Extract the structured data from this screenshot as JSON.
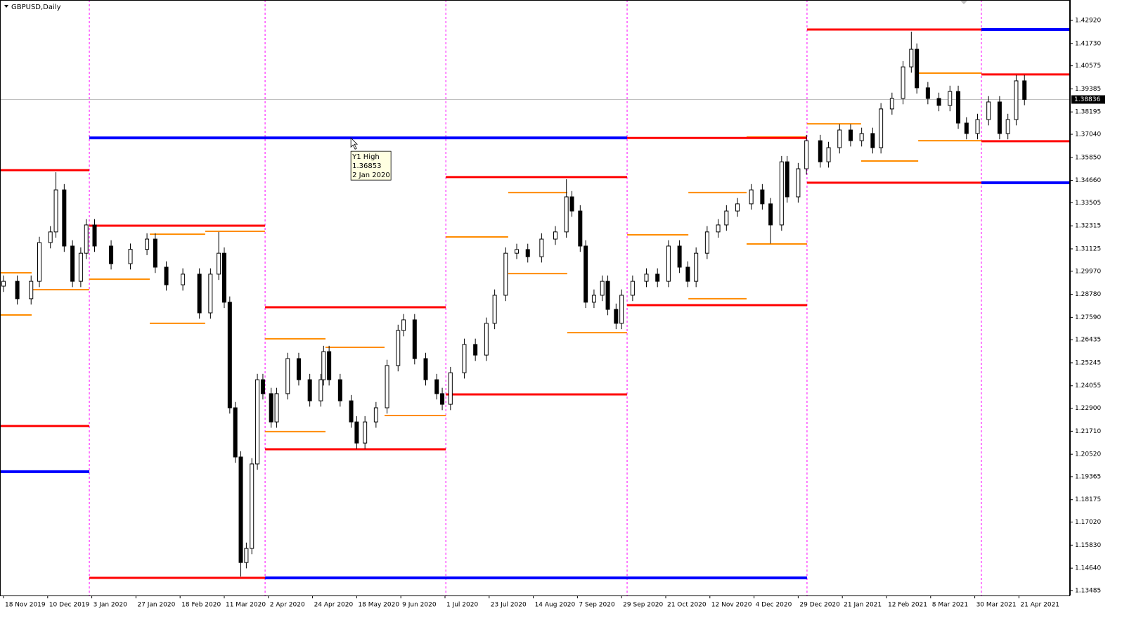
{
  "chart_data": {
    "type": "candlestick",
    "title": "GBPUSD,Daily",
    "x": [
      0,
      5,
      10,
      13,
      17,
      19,
      22,
      25,
      28,
      30,
      33,
      39,
      46,
      52,
      55,
      59,
      65,
      71,
      75,
      78,
      80,
      82,
      84,
      86,
      88,
      90,
      92,
      94,
      97,
      99,
      103,
      107,
      111,
      115,
      116,
      118,
      122,
      126,
      128,
      131,
      135,
      139,
      143,
      145,
      149,
      153,
      157,
      159,
      162,
      167,
      171,
      175,
      178,
      182,
      186,
      190,
      195,
      200,
      204,
      206,
      209,
      211,
      214,
      217,
      219,
      222,
      224,
      228,
      233,
      237,
      241,
      245,
      248,
      251,
      255,
      259,
      262,
      266,
      271,
      275,
      278,
      282,
      284,
      288,
      291,
      296,
      299,
      303,
      307,
      311,
      315,
      318,
      322,
      326,
      329,
      331,
      335,
      339,
      343,
      346,
      349,
      353,
      357,
      361,
      364,
      367,
      370
    ],
    "open": [
      1.292,
      1.2945,
      1.2855,
      1.2945,
      1.3145,
      1.32,
      1.3417,
      1.3127,
      1.2945,
      1.309,
      1.3236,
      1.3127,
      1.3036,
      1.311,
      1.3163,
      1.3018,
      1.2927,
      1.2982,
      1.2782,
      1.2982,
      1.309,
      1.2837,
      1.2292,
      1.2038,
      1.1493,
      1.1566,
      1.2002,
      1.2437,
      1.2365,
      1.2219,
      1.2365,
      1.2546,
      1.2437,
      1.2328,
      1.2437,
      1.2582,
      1.2437,
      1.2328,
      1.2219,
      1.211,
      1.2219,
      1.2292,
      1.251,
      1.2691,
      1.2746,
      1.2546,
      1.2437,
      1.2365,
      1.231,
      1.2473,
      1.2619,
      1.2564,
      1.2728,
      1.2873,
      1.309,
      1.3109,
      1.3072,
      1.3163,
      1.32,
      1.3381,
      1.3308,
      1.3127,
      1.2837,
      1.2873,
      1.2945,
      1.28,
      1.2728,
      1.2873,
      1.2945,
      1.2982,
      1.2945,
      1.3127,
      1.3018,
      1.2945,
      1.309,
      1.32,
      1.3236,
      1.3308,
      1.3345,
      1.3417,
      1.3345,
      1.3236,
      1.3562,
      1.3381,
      1.3526,
      1.3671,
      1.3562,
      1.3635,
      1.3726,
      1.3671,
      1.3708,
      1.3635,
      1.3835,
      1.3889,
      1.4052,
      1.4143,
      1.3944,
      1.3889,
      1.3853,
      1.3925,
      1.3762,
      1.3708,
      1.378,
      1.3871,
      1.3708,
      1.378,
      1.398
    ],
    "high": [
      1.2975,
      1.2975,
      1.2975,
      1.3175,
      1.323,
      1.3508,
      1.3447,
      1.3157,
      1.312,
      1.3266,
      1.3266,
      1.3157,
      1.314,
      1.3193,
      1.3193,
      1.3048,
      1.3012,
      1.3012,
      1.3012,
      1.32,
      1.312,
      1.2867,
      1.2322,
      1.2068,
      1.1596,
      1.2032,
      1.2467,
      1.2467,
      1.2395,
      1.2395,
      1.2576,
      1.2576,
      1.2467,
      1.2467,
      1.2612,
      1.2612,
      1.2467,
      1.2358,
      1.2249,
      1.2249,
      1.2322,
      1.254,
      1.2721,
      1.2776,
      1.2776,
      1.2576,
      1.2467,
      1.2395,
      1.2503,
      1.2649,
      1.2649,
      1.2758,
      1.2903,
      1.312,
      1.3139,
      1.3139,
      1.3193,
      1.323,
      1.3472,
      1.3411,
      1.3338,
      1.3157,
      1.2903,
      1.2975,
      1.2975,
      1.283,
      1.2903,
      1.2975,
      1.3012,
      1.3012,
      1.3157,
      1.3157,
      1.3048,
      1.312,
      1.323,
      1.3266,
      1.3338,
      1.3375,
      1.3447,
      1.3447,
      1.3375,
      1.3592,
      1.3592,
      1.3556,
      1.3701,
      1.3701,
      1.3665,
      1.3756,
      1.3756,
      1.3738,
      1.3738,
      1.3865,
      1.3919,
      1.4082,
      1.4234,
      1.4173,
      1.3974,
      1.3919,
      1.3955,
      1.3955,
      1.3792,
      1.381,
      1.3901,
      1.3901,
      1.381,
      1.401,
      1.401
    ],
    "low": [
      1.289,
      1.2825,
      1.2825,
      1.2915,
      1.3115,
      1.317,
      1.3097,
      1.2915,
      1.2915,
      1.306,
      1.3097,
      1.3006,
      1.3006,
      1.308,
      1.2988,
      1.2897,
      1.2897,
      1.2752,
      1.2752,
      1.2952,
      1.2807,
      1.2262,
      1.2008,
      1.1421,
      1.1463,
      1.1536,
      1.1972,
      1.2335,
      1.2189,
      1.2189,
      1.2335,
      1.2407,
      1.2298,
      1.2298,
      1.2407,
      1.2407,
      1.2298,
      1.2189,
      1.208,
      1.208,
      1.2189,
      1.2262,
      1.248,
      1.2661,
      1.2516,
      1.2407,
      1.2335,
      1.228,
      1.228,
      1.2443,
      1.2534,
      1.2534,
      1.2698,
      1.2843,
      1.306,
      1.3042,
      1.3042,
      1.3133,
      1.317,
      1.3278,
      1.3097,
      1.2807,
      1.2807,
      1.2843,
      1.277,
      1.2698,
      1.2698,
      1.2843,
      1.2915,
      1.2915,
      1.2915,
      1.2988,
      1.2915,
      1.2915,
      1.306,
      1.317,
      1.3206,
      1.3278,
      1.3315,
      1.3315,
      1.314,
      1.3206,
      1.3351,
      1.3351,
      1.3496,
      1.3532,
      1.3532,
      1.3605,
      1.3641,
      1.3641,
      1.3605,
      1.3605,
      1.3805,
      1.3859,
      1.4022,
      1.3914,
      1.3859,
      1.3823,
      1.3823,
      1.3732,
      1.3678,
      1.3678,
      1.375,
      1.3678,
      1.3678,
      1.375,
      1.3854
    ],
    "close": [
      1.2945,
      1.2855,
      1.2945,
      1.3145,
      1.32,
      1.3417,
      1.3127,
      1.2945,
      1.309,
      1.3236,
      1.3127,
      1.3036,
      1.311,
      1.3163,
      1.3018,
      1.2927,
      1.2982,
      1.2782,
      1.2982,
      1.309,
      1.2837,
      1.2292,
      1.2038,
      1.1493,
      1.1566,
      1.2002,
      1.2437,
      1.2365,
      1.2219,
      1.2365,
      1.2546,
      1.2437,
      1.2328,
      1.2437,
      1.2582,
      1.2437,
      1.2328,
      1.2219,
      1.211,
      1.2219,
      1.2292,
      1.251,
      1.2691,
      1.2746,
      1.2546,
      1.2437,
      1.2365,
      1.231,
      1.2473,
      1.2619,
      1.2564,
      1.2728,
      1.2873,
      1.309,
      1.3109,
      1.3072,
      1.3163,
      1.32,
      1.3381,
      1.3308,
      1.3127,
      1.2837,
      1.2873,
      1.2945,
      1.28,
      1.2728,
      1.2873,
      1.2945,
      1.2982,
      1.2945,
      1.3127,
      1.3018,
      1.2945,
      1.309,
      1.32,
      1.3236,
      1.3308,
      1.3345,
      1.3417,
      1.3345,
      1.3236,
      1.3562,
      1.3381,
      1.3526,
      1.3671,
      1.3562,
      1.3635,
      1.3726,
      1.3671,
      1.3708,
      1.3635,
      1.3835,
      1.3889,
      1.4052,
      1.4143,
      1.3944,
      1.3889,
      1.3853,
      1.3925,
      1.3762,
      1.3708,
      1.378,
      1.3871,
      1.3708,
      1.378,
      1.398,
      1.3884
    ],
    "xlim": [
      -1.27,
      386.5
    ],
    "ylim": [
      1.13229,
      1.43973
    ],
    "yticks": [
      {
        "value": 1.4292,
        "label": "1.42920"
      },
      {
        "value": 1.4173,
        "label": "1.41730"
      },
      {
        "value": 1.40575,
        "label": "1.40575"
      },
      {
        "value": 1.39385,
        "label": "1.39385"
      },
      {
        "value": 1.38195,
        "label": "1.38195"
      },
      {
        "value": 1.3704,
        "label": "1.37040"
      },
      {
        "value": 1.3585,
        "label": "1.35850"
      },
      {
        "value": 1.3466,
        "label": "1.34660"
      },
      {
        "value": 1.33505,
        "label": "1.33505"
      },
      {
        "value": 1.32315,
        "label": "1.32315"
      },
      {
        "value": 1.31125,
        "label": "1.31125"
      },
      {
        "value": 1.2997,
        "label": "1.29970"
      },
      {
        "value": 1.2878,
        "label": "1.28780"
      },
      {
        "value": 1.2759,
        "label": "1.27590"
      },
      {
        "value": 1.26435,
        "label": "1.26435"
      },
      {
        "value": 1.25245,
        "label": "1.25245"
      },
      {
        "value": 1.24055,
        "label": "1.24055"
      },
      {
        "value": 1.229,
        "label": "1.22900"
      },
      {
        "value": 1.2171,
        "label": "1.21710"
      },
      {
        "value": 1.2052,
        "label": "1.20520"
      },
      {
        "value": 1.19365,
        "label": "1.19365"
      },
      {
        "value": 1.18175,
        "label": "1.18175"
      },
      {
        "value": 1.1702,
        "label": "1.17020"
      },
      {
        "value": 1.1583,
        "label": "1.15830"
      },
      {
        "value": 1.1464,
        "label": "1.14640"
      },
      {
        "value": 1.13485,
        "label": "1.13485"
      }
    ],
    "xticks": [
      {
        "value": 0,
        "label": "18 Nov 2019"
      },
      {
        "value": 16,
        "label": "10 Dec 2019"
      },
      {
        "value": 32,
        "label": "3 Jan 2020"
      },
      {
        "value": 48,
        "label": "27 Jan 2020"
      },
      {
        "value": 64,
        "label": "18 Feb 2020"
      },
      {
        "value": 80,
        "label": "11 Mar 2020"
      },
      {
        "value": 96,
        "label": "2 Apr 2020"
      },
      {
        "value": 112,
        "label": "24 Apr 2020"
      },
      {
        "value": 128,
        "label": "18 May 2020"
      },
      {
        "value": 144,
        "label": "9 Jun 2020"
      },
      {
        "value": 160,
        "label": "1 Jul 2020"
      },
      {
        "value": 176,
        "label": "23 Jul 2020"
      },
      {
        "value": 192,
        "label": "14 Aug 2020"
      },
      {
        "value": 208,
        "label": "7 Sep 2020"
      },
      {
        "value": 224,
        "label": "29 Sep 2020"
      },
      {
        "value": 240,
        "label": "21 Oct 2020"
      },
      {
        "value": 256,
        "label": "12 Nov 2020"
      },
      {
        "value": 272,
        "label": "4 Dec 2020"
      },
      {
        "value": 288,
        "label": "29 Dec 2020"
      },
      {
        "value": 304,
        "label": "21 Jan 2021"
      },
      {
        "value": 320,
        "label": "12 Feb 2021"
      },
      {
        "value": 336,
        "label": "8 Mar 2021"
      },
      {
        "value": 352,
        "label": "30 Mar 2021"
      },
      {
        "value": 368,
        "label": "21 Apr 2021"
      }
    ],
    "separators": [
      31.1,
      94.8,
      160.3,
      226.0,
      291.2,
      354.4
    ],
    "separator_color": "#ff00ff",
    "levels": [
      {
        "color": "#0000ff",
        "segments": [
          {
            "x": [
              31.1,
              226.0
            ],
            "value": 1.36853
          },
          {
            "x": [
              -1.27,
              31.1
            ],
            "value": 1.1962
          },
          {
            "x": [
              94.8,
              291.2
            ],
            "value": 1.1414
          },
          {
            "x": [
              354.4,
              386.5
            ],
            "value": 1.4245
          },
          {
            "x": [
              354.4,
              386.5
            ],
            "value": 1.3454
          }
        ]
      },
      {
        "color": "#ff0000",
        "segments": [
          {
            "x": [
              -1.27,
              31.1
            ],
            "value": 1.3519
          },
          {
            "x": [
              -1.27,
              31.1
            ],
            "value": 1.2198
          },
          {
            "x": [
              31.1,
              94.8
            ],
            "value": 1.3232
          },
          {
            "x": [
              31.1,
              94.8
            ],
            "value": 1.1414
          },
          {
            "x": [
              94.8,
              160.3
            ],
            "value": 1.2811
          },
          {
            "x": [
              94.8,
              160.3
            ],
            "value": 1.2078
          },
          {
            "x": [
              160.3,
              226.0
            ],
            "value": 1.3483
          },
          {
            "x": [
              160.3,
              226.0
            ],
            "value": 1.2361
          },
          {
            "x": [
              226.0,
              291.2
            ],
            "value": 1.3685
          },
          {
            "x": [
              226.0,
              291.2
            ],
            "value": 1.2822
          },
          {
            "x": [
              291.2,
              354.4
            ],
            "value": 1.4245
          },
          {
            "x": [
              291.2,
              354.4
            ],
            "value": 1.3454
          },
          {
            "x": [
              354.4,
              386.5
            ],
            "value": 1.4013
          },
          {
            "x": [
              354.4,
              386.5
            ],
            "value": 1.3668
          }
        ]
      },
      {
        "color": "#ff8c00",
        "segments": [
          {
            "x": [
              -1.27,
              10.2
            ],
            "value": 1.2989
          },
          {
            "x": [
              -1.27,
              10.2
            ],
            "value": 1.2771
          },
          {
            "x": [
              10.2,
              31.1
            ],
            "value": 1.2902
          },
          {
            "x": [
              31.1,
              53.0
            ],
            "value": 1.3232
          },
          {
            "x": [
              31.1,
              53.0
            ],
            "value": 1.2956
          },
          {
            "x": [
              53.0,
              73.1
            ],
            "value": 1.3188
          },
          {
            "x": [
              53.0,
              73.1
            ],
            "value": 1.2728
          },
          {
            "x": [
              73.1,
              94.8
            ],
            "value": 1.3203
          },
          {
            "x": [
              94.8,
              116.7
            ],
            "value": 1.2648
          },
          {
            "x": [
              94.8,
              116.7
            ],
            "value": 1.2169
          },
          {
            "x": [
              116.7,
              138.1
            ],
            "value": 1.2604
          },
          {
            "x": [
              116.7,
              138.1
            ],
            "value": 1.2078
          },
          {
            "x": [
              138.1,
              160.3
            ],
            "value": 1.2811
          },
          {
            "x": [
              138.1,
              160.3
            ],
            "value": 1.2252
          },
          {
            "x": [
              160.3,
              182.9
            ],
            "value": 1.3174
          },
          {
            "x": [
              160.3,
              182.9
            ],
            "value": 1.2361
          },
          {
            "x": [
              182.9,
              204.3
            ],
            "value": 1.3403
          },
          {
            "x": [
              182.9,
              204.3
            ],
            "value": 1.2985
          },
          {
            "x": [
              204.3,
              226.0
            ],
            "value": 1.3483
          },
          {
            "x": [
              204.3,
              226.0
            ],
            "value": 1.268
          },
          {
            "x": [
              226.0,
              248.2
            ],
            "value": 1.3185
          },
          {
            "x": [
              226.0,
              248.2
            ],
            "value": 1.2822
          },
          {
            "x": [
              248.2,
              269.3
            ],
            "value": 1.3403
          },
          {
            "x": [
              248.2,
              269.3
            ],
            "value": 1.2855
          },
          {
            "x": [
              269.3,
              291.2
            ],
            "value": 1.369
          },
          {
            "x": [
              269.3,
              291.2
            ],
            "value": 1.3138
          },
          {
            "x": [
              291.2,
              310.8
            ],
            "value": 1.3758
          },
          {
            "x": [
              291.2,
              310.8
            ],
            "value": 1.3454
          },
          {
            "x": [
              310.8,
              331.5
            ],
            "value": 1.4245
          },
          {
            "x": [
              310.8,
              331.5
            ],
            "value": 1.3566
          },
          {
            "x": [
              331.5,
              354.4
            ],
            "value": 1.402
          },
          {
            "x": [
              331.5,
              354.4
            ],
            "value": 1.3671
          },
          {
            "x": [
              354.4,
              378.3
            ],
            "value": 1.4013
          },
          {
            "x": [
              354.4,
              378.3
            ],
            "value": 1.3668
          }
        ]
      }
    ],
    "current_price": 1.38836,
    "tooltip": {
      "name": "Y1 High",
      "value": 1.36853,
      "date": "2 Jan 2020"
    }
  }
}
